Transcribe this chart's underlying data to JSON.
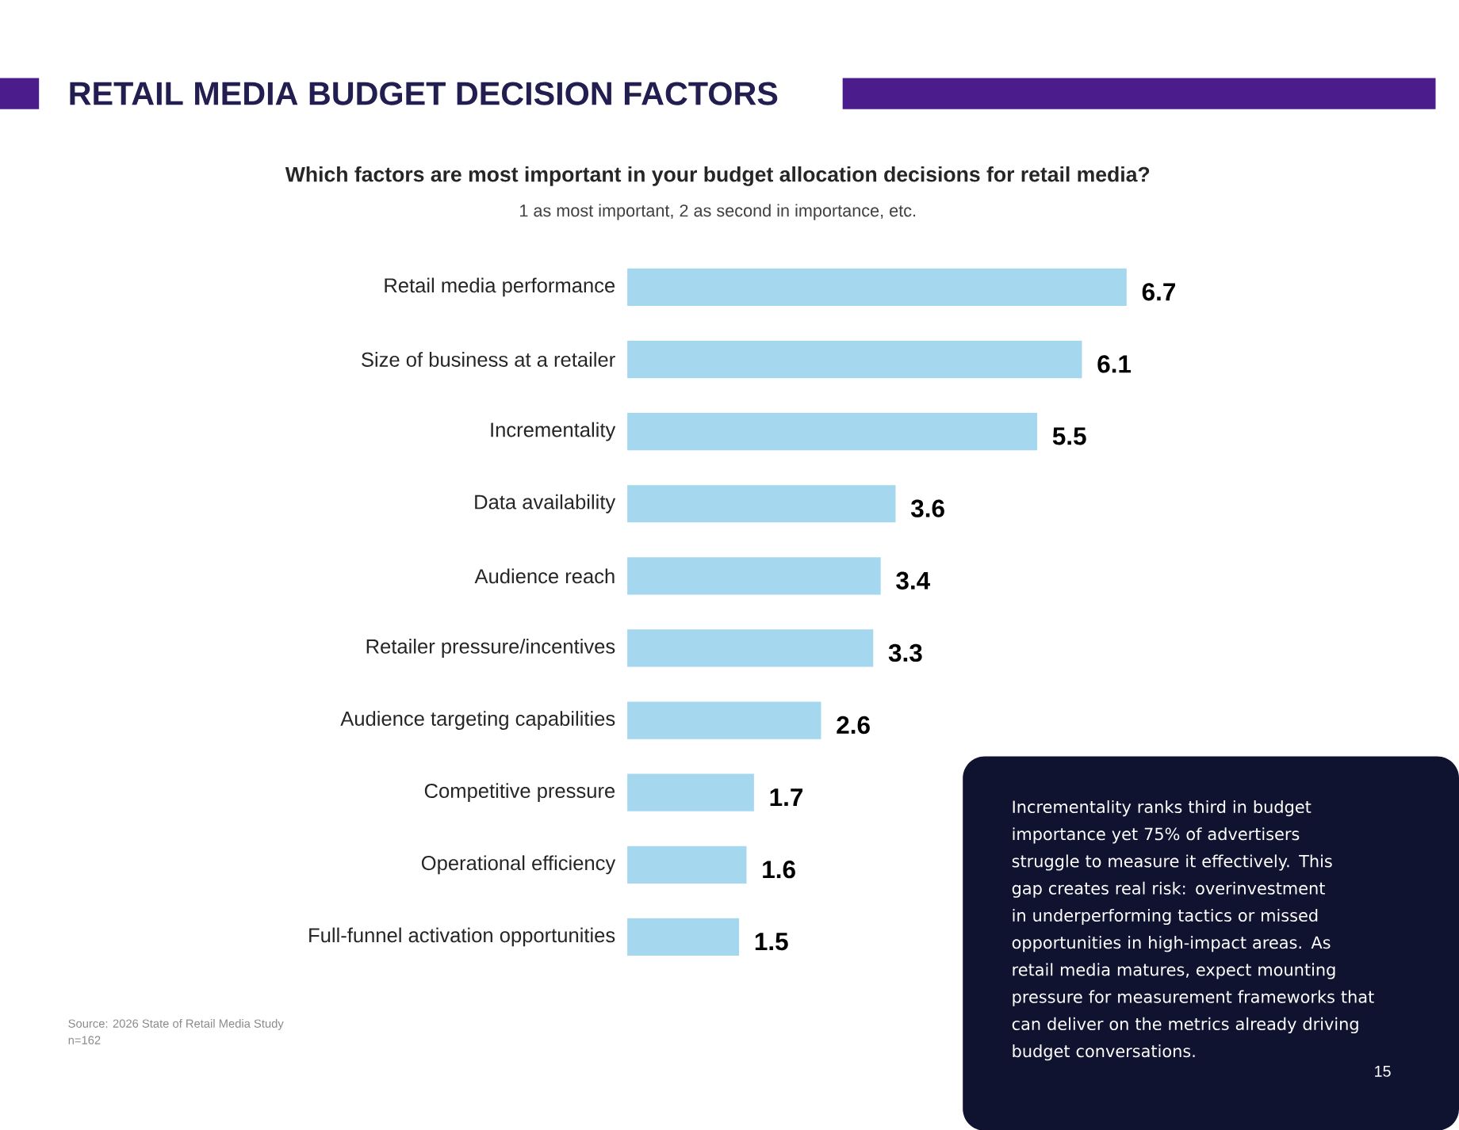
{
  "chart_data": {
    "type": "bar",
    "orientation": "horizontal",
    "title": "RETAIL MEDIA BUDGET DECISION FACTORS",
    "subtitle": "Which factors are most important in your budget allocation decisions for retail media?",
    "categories": [
      "Retail media performance",
      "Size of business at a retailer",
      "Incrementality",
      "Data availability",
      "Audience reach",
      "Retailer pressure/incentives",
      "Audience targeting capabilities",
      "Competitive pressure",
      "Operational efficiency",
      "Full-funnel activation opportunities"
    ],
    "values": [
      6.7,
      6.1,
      5.5,
      3.6,
      3.4,
      3.3,
      2.6,
      1.7,
      1.6,
      1.5
    ],
    "color": "#a5d8ef",
    "data_labels": true,
    "annotations": [
      "1 as most important, 2 as second in importance, etc.",
      "Source: 2026 State of Retail Media Study",
      "n=162",
      "Incrementality ranks third in budget importance yet 75% of advertisers struggle to measure it effectively. This gap creates real risk: overinvestment in underperforming tactics or missed opportunities in high-impact areas. As retail media matures, expect mounting pressure for measurement frameworks that can deliver on the metrics already driving budget conversations.",
      "15"
    ]
  }
}
